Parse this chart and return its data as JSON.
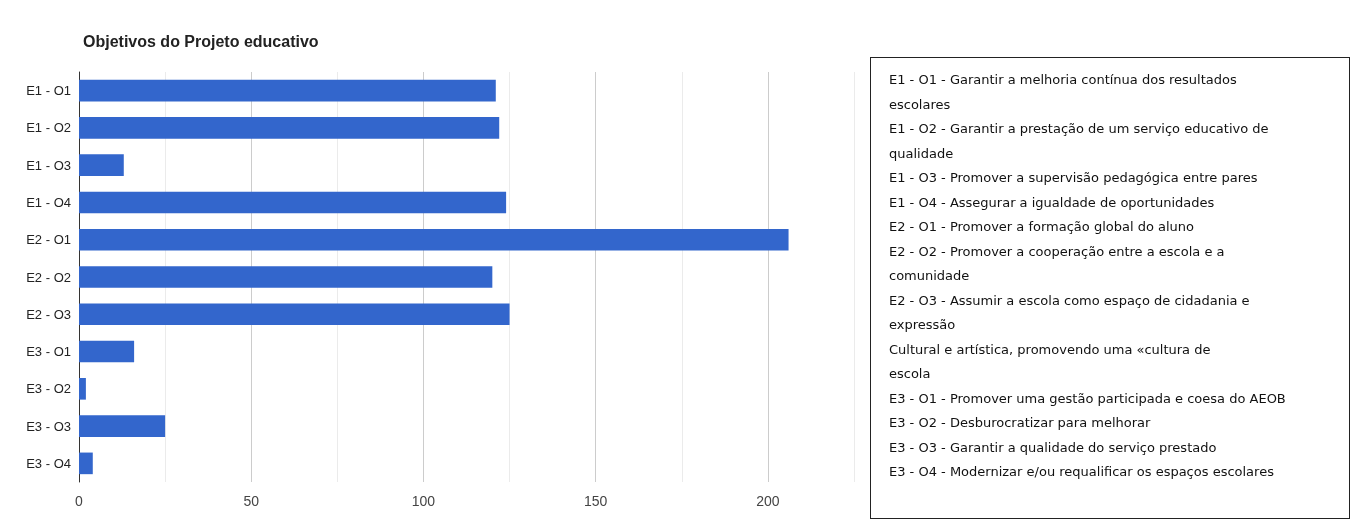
{
  "chart_data": {
    "type": "bar",
    "orientation": "horizontal",
    "title": "Objetivos do Projeto educativo",
    "categories": [
      "E1 - O1",
      "E1 - O2",
      "E1 - O3",
      "E1 - O4",
      "E2 - O1",
      "E2 - O2",
      "E2 - O3",
      "E3 - O1",
      "E3 - O2",
      "E3 - O3",
      "E3 - O4"
    ],
    "values": [
      121,
      122,
      13,
      124,
      206,
      120,
      125,
      16,
      2,
      25,
      4
    ],
    "color": "#3366cc",
    "xlim": [
      0,
      225
    ],
    "xticks": [
      0,
      {
        "value": 25,
        "label": null
      },
      50,
      {
        "value": 75,
        "label": null
      },
      100,
      {
        "value": 125,
        "label": null
      },
      150,
      {
        "value": 175,
        "label": null
      },
      200,
      {
        "value": 225,
        "label": null
      }
    ],
    "grid": "x",
    "annotations": [
      "E1 - O1 - Garantir a melhoria contínua dos resultados",
      "escolares",
      "E1 - O2 - Garantir a prestação de um serviço educativo de",
      "qualidade",
      "E1 - O3 - Promover a supervisão pedagógica entre pares",
      "E1 - O4 - Assegurar a igualdade de oportunidades",
      "E2 - O1 - Promover a formação global do aluno",
      "E2 - O2 - Promover a cooperação entre a escola e a",
      "comunidade",
      "E2 - O3 - Assumir a escola como espaço de cidadania e",
      "expressão",
      "Cultural e artística, promovendo uma «cultura de",
      "escola",
      "E3 - O1 - Promover uma gestão participada e coesa do AEOB",
      "E3 - O2 - Desburocratizar para melhorar",
      "E3 - O3 - Garantir a qualidade do serviço prestado",
      "E3 - O4 - Modernizar e/ou requalificar os espaços escolares"
    ]
  }
}
